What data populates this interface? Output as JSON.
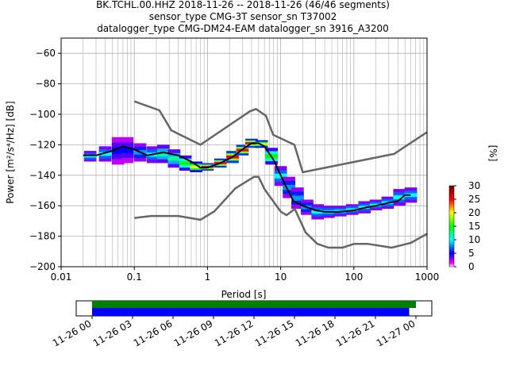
{
  "title_lines": [
    "BK.TCHL.00.HHZ   2018-11-26 -- 2018-11-26  (46/46 segments)",
    "sensor_type CMG-3T sensor_sn T37002",
    "datalogger_type CMG-DM24-EAM datalogger_sn 3916_A3200"
  ],
  "colorbar": {
    "label": "[%]",
    "ticks": [
      "0",
      "5",
      "10",
      "15",
      "20",
      "25",
      "30"
    ],
    "range": [
      0,
      30
    ]
  },
  "colors": {
    "noise_model": "#666666",
    "mode_line": "#000000",
    "coverage_green": "#008000",
    "coverage_blue": "#0000ff"
  },
  "chart_data": [
    {
      "type": "heatmap",
      "title": "",
      "xlabel": "Period [s]",
      "ylabel": "Power [m²/s⁴/Hz] [dB]",
      "xscale": "log",
      "xlim": [
        0.01,
        1000
      ],
      "ylim": [
        -200,
        -50
      ],
      "xticks": [
        "0.01",
        "0.1",
        "1",
        "10",
        "100",
        "1000"
      ],
      "yticks": [
        "−60",
        "−80",
        "−100",
        "−120",
        "−140",
        "−160",
        "−180",
        "−200"
      ],
      "grid": true,
      "series": [
        {
          "role": "high_noise_model",
          "x": [
            0.1,
            0.22,
            0.32,
            0.8,
            3.8,
            4.6,
            6.3,
            7.9,
            15.4,
            20,
            354.8,
            10000
          ],
          "y": [
            -91.5,
            -97.4,
            -110.5,
            -120,
            -98,
            -96.5,
            -101,
            -113.5,
            -120,
            -138,
            -126,
            -80
          ]
        },
        {
          "role": "low_noise_model",
          "x": [
            0.1,
            0.17,
            0.4,
            0.8,
            1.24,
            2.4,
            4.3,
            5,
            6,
            10,
            12,
            15.6,
            21.9,
            31.6,
            45,
            70,
            101,
            154,
            328,
            600,
            10000
          ],
          "y": [
            -168,
            -166.7,
            -166.7,
            -169.2,
            -163.7,
            -148.6,
            -141.1,
            -141.1,
            -149,
            -163.8,
            -166.2,
            -162.1,
            -177.5,
            -185,
            -187.5,
            -187.5,
            -185,
            -185,
            -187.5,
            -184.4,
            -151.5
          ]
        },
        {
          "role": "mode",
          "x": [
            0.02,
            0.03,
            0.05,
            0.07,
            0.1,
            0.15,
            0.25,
            0.4,
            0.6,
            0.8,
            1,
            1.5,
            2.2,
            3,
            4,
            5,
            6,
            8,
            10,
            12,
            15,
            20,
            30,
            40,
            60,
            100,
            150,
            200,
            300,
            400,
            500,
            600
          ],
          "y": [
            -127,
            -127,
            -124,
            -121,
            -123,
            -127,
            -125,
            -127,
            -131,
            -135,
            -135,
            -132,
            -128,
            -123,
            -119,
            -119,
            -121,
            -130,
            -140,
            -148,
            -157,
            -160,
            -163,
            -164,
            -164,
            -163,
            -161,
            -160,
            -158,
            -157,
            -153,
            -153
          ]
        }
      ],
      "density": [
        {
          "x": 0.025,
          "y_min": -131,
          "y_max": -124,
          "intensity": 10
        },
        {
          "x": 0.04,
          "y_min": -131,
          "y_max": -121,
          "intensity": 10
        },
        {
          "x": 0.06,
          "y_min": -133,
          "y_max": -115,
          "intensity": 5
        },
        {
          "x": 0.08,
          "y_min": -132,
          "y_max": -115,
          "intensity": 5
        },
        {
          "x": 0.12,
          "y_min": -131,
          "y_max": -119,
          "intensity": 8
        },
        {
          "x": 0.18,
          "y_min": -132,
          "y_max": -121,
          "intensity": 10
        },
        {
          "x": 0.25,
          "y_min": -132,
          "y_max": -120,
          "intensity": 12
        },
        {
          "x": 0.35,
          "y_min": -135,
          "y_max": -123,
          "intensity": 12
        },
        {
          "x": 0.5,
          "y_min": -137,
          "y_max": -127,
          "intensity": 15
        },
        {
          "x": 0.7,
          "y_min": -138,
          "y_max": -131,
          "intensity": 20
        },
        {
          "x": 1,
          "y_min": -137,
          "y_max": -132,
          "intensity": 25
        },
        {
          "x": 1.5,
          "y_min": -135,
          "y_max": -129,
          "intensity": 25
        },
        {
          "x": 2.2,
          "y_min": -132,
          "y_max": -124,
          "intensity": 25
        },
        {
          "x": 3,
          "y_min": -127,
          "y_max": -120,
          "intensity": 25
        },
        {
          "x": 4,
          "y_min": -122,
          "y_max": -116,
          "intensity": 25
        },
        {
          "x": 5.5,
          "y_min": -122,
          "y_max": -117,
          "intensity": 20
        },
        {
          "x": 7.5,
          "y_min": -133,
          "y_max": -122,
          "intensity": 15
        },
        {
          "x": 10,
          "y_min": -147,
          "y_max": -134,
          "intensity": 10
        },
        {
          "x": 13,
          "y_min": -155,
          "y_max": -141,
          "intensity": 8
        },
        {
          "x": 17,
          "y_min": -162,
          "y_max": -148,
          "intensity": 8
        },
        {
          "x": 23,
          "y_min": -166,
          "y_max": -156,
          "intensity": 8
        },
        {
          "x": 32,
          "y_min": -169,
          "y_max": -159,
          "intensity": 10
        },
        {
          "x": 45,
          "y_min": -168,
          "y_max": -160,
          "intensity": 10
        },
        {
          "x": 65,
          "y_min": -167,
          "y_max": -160,
          "intensity": 10
        },
        {
          "x": 95,
          "y_min": -166,
          "y_max": -159,
          "intensity": 10
        },
        {
          "x": 140,
          "y_min": -165,
          "y_max": -157,
          "intensity": 10
        },
        {
          "x": 200,
          "y_min": -163,
          "y_max": -156,
          "intensity": 10
        },
        {
          "x": 290,
          "y_min": -162,
          "y_max": -154,
          "intensity": 10
        },
        {
          "x": 420,
          "y_min": -160,
          "y_max": -149,
          "intensity": 10
        },
        {
          "x": 600,
          "y_min": -158,
          "y_max": -148,
          "intensity": 10
        }
      ]
    },
    {
      "type": "bar",
      "title": "",
      "x_ticks": [
        "11-26 00",
        "11-26 03",
        "11-26 06",
        "11-26 09",
        "11-26 12",
        "11-26 15",
        "11-26 18",
        "11-26 21",
        "11-27 00"
      ],
      "x_range": [
        "11-26 00",
        "11-27 00"
      ],
      "series": [
        {
          "role": "coverage_green",
          "start": "11-26 00",
          "end": "11-27 00"
        },
        {
          "role": "coverage_blue",
          "start": "11-26 00",
          "end": "11-26 23:30"
        }
      ]
    }
  ]
}
